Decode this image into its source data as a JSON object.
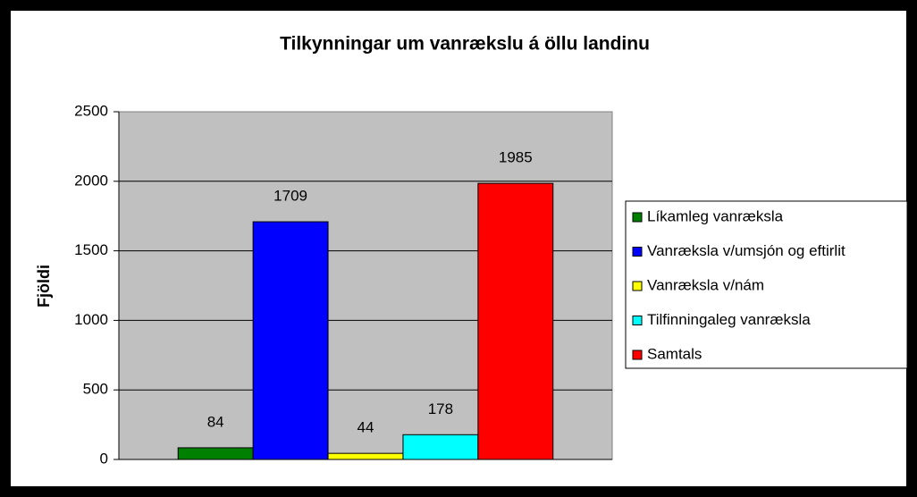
{
  "chart_data": {
    "type": "bar",
    "title": "Tilkynningar um vanrækslu á öllu landinu",
    "ylabel": "Fjöldi",
    "categories": [
      null
    ],
    "series": [
      {
        "name": "Líkamleg vanræksla",
        "color": "#008000",
        "values": [
          84
        ]
      },
      {
        "name": "Vanræksla v/umsjón og eftirlit",
        "color": "#0000ff",
        "values": [
          1709
        ]
      },
      {
        "name": "Vanræksla v/nám",
        "color": "#ffff00",
        "values": [
          44
        ]
      },
      {
        "name": "Tilfinningaleg vanræksla",
        "color": "#00ffff",
        "values": [
          178
        ]
      },
      {
        "name": "Samtals",
        "color": "#ff0000",
        "values": [
          1985
        ]
      }
    ],
    "ylim": [
      0,
      2500
    ],
    "yticks": [
      0,
      500,
      1000,
      1500,
      2000,
      2500
    ],
    "grid": true,
    "legend": "right"
  }
}
